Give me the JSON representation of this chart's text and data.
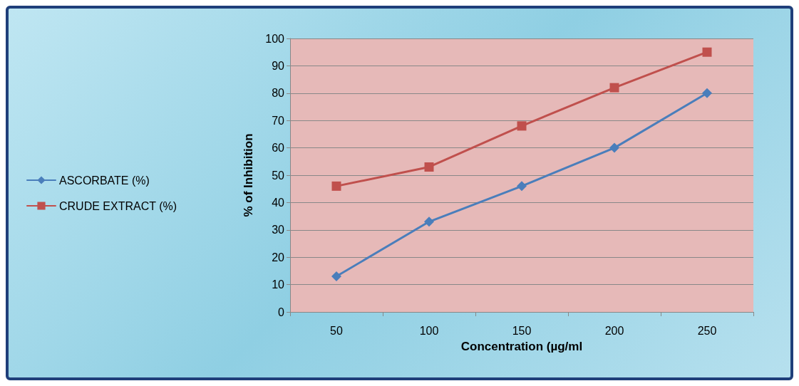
{
  "chart_data": {
    "type": "line",
    "xlabel": "Concentration (µg/ml",
    "ylabel": "% of Inhibition",
    "categories": [
      "50",
      "100",
      "150",
      "200",
      "250"
    ],
    "series": [
      {
        "name": "ASCORBATE (%)",
        "color": "#4a7ebb",
        "marker": "diamond",
        "values": [
          13,
          33,
          46,
          60,
          80
        ]
      },
      {
        "name": "CRUDE EXTRACT (%)",
        "color": "#c0504d",
        "marker": "square",
        "values": [
          46,
          53,
          68,
          82,
          95
        ]
      }
    ],
    "ylim": [
      0,
      100
    ],
    "yticks": [
      0,
      10,
      20,
      30,
      40,
      50,
      60,
      70,
      80,
      90,
      100
    ],
    "grid": "y",
    "legend": "left",
    "line_style": "solid"
  }
}
